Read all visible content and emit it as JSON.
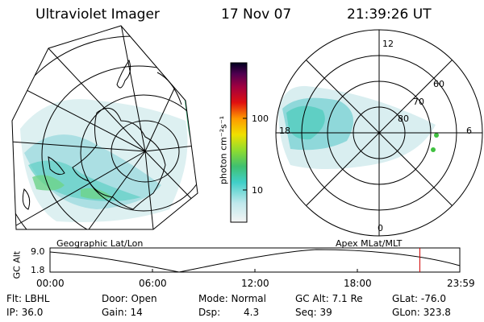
{
  "header": {
    "instrument": "Ultraviolet Imager",
    "date": "17 Nov 07",
    "time": "21:39:26 UT"
  },
  "colorbar": {
    "unit_label": "photon cm⁻²s⁻¹",
    "ticks": [
      "100",
      "10"
    ],
    "scale": "log"
  },
  "polar_plot": {
    "mlt_labels": {
      "top": "12",
      "left": "18",
      "right": "6",
      "bottom": "0"
    },
    "lat_labels": [
      "60",
      "70",
      "80"
    ]
  },
  "timeline": {
    "left_caption": "Geographic Lat/Lon",
    "right_caption": "Apex MLat/MLT",
    "yaxis_label": "GC Alt",
    "yticks": [
      "9.0",
      "1.8"
    ],
    "xticks": [
      "00:00",
      "06:00",
      "12:00",
      "18:00",
      "23:59"
    ],
    "marker_time_hours": 21.66,
    "marker_color": "#d00000"
  },
  "info": {
    "filter": "Flt: LBHL",
    "ip": "IP: 36.0",
    "door": "Door: Open",
    "gain": "Gain: 14",
    "mode": "Mode: Normal",
    "dsp_label": "Dsp:",
    "dsp_value": "4.3",
    "gc_alt": "GC Alt: 7.1 Re",
    "seq": "Seq: 39",
    "glat": "GLat: -76.0",
    "glon": "GLon: 323.8"
  }
}
